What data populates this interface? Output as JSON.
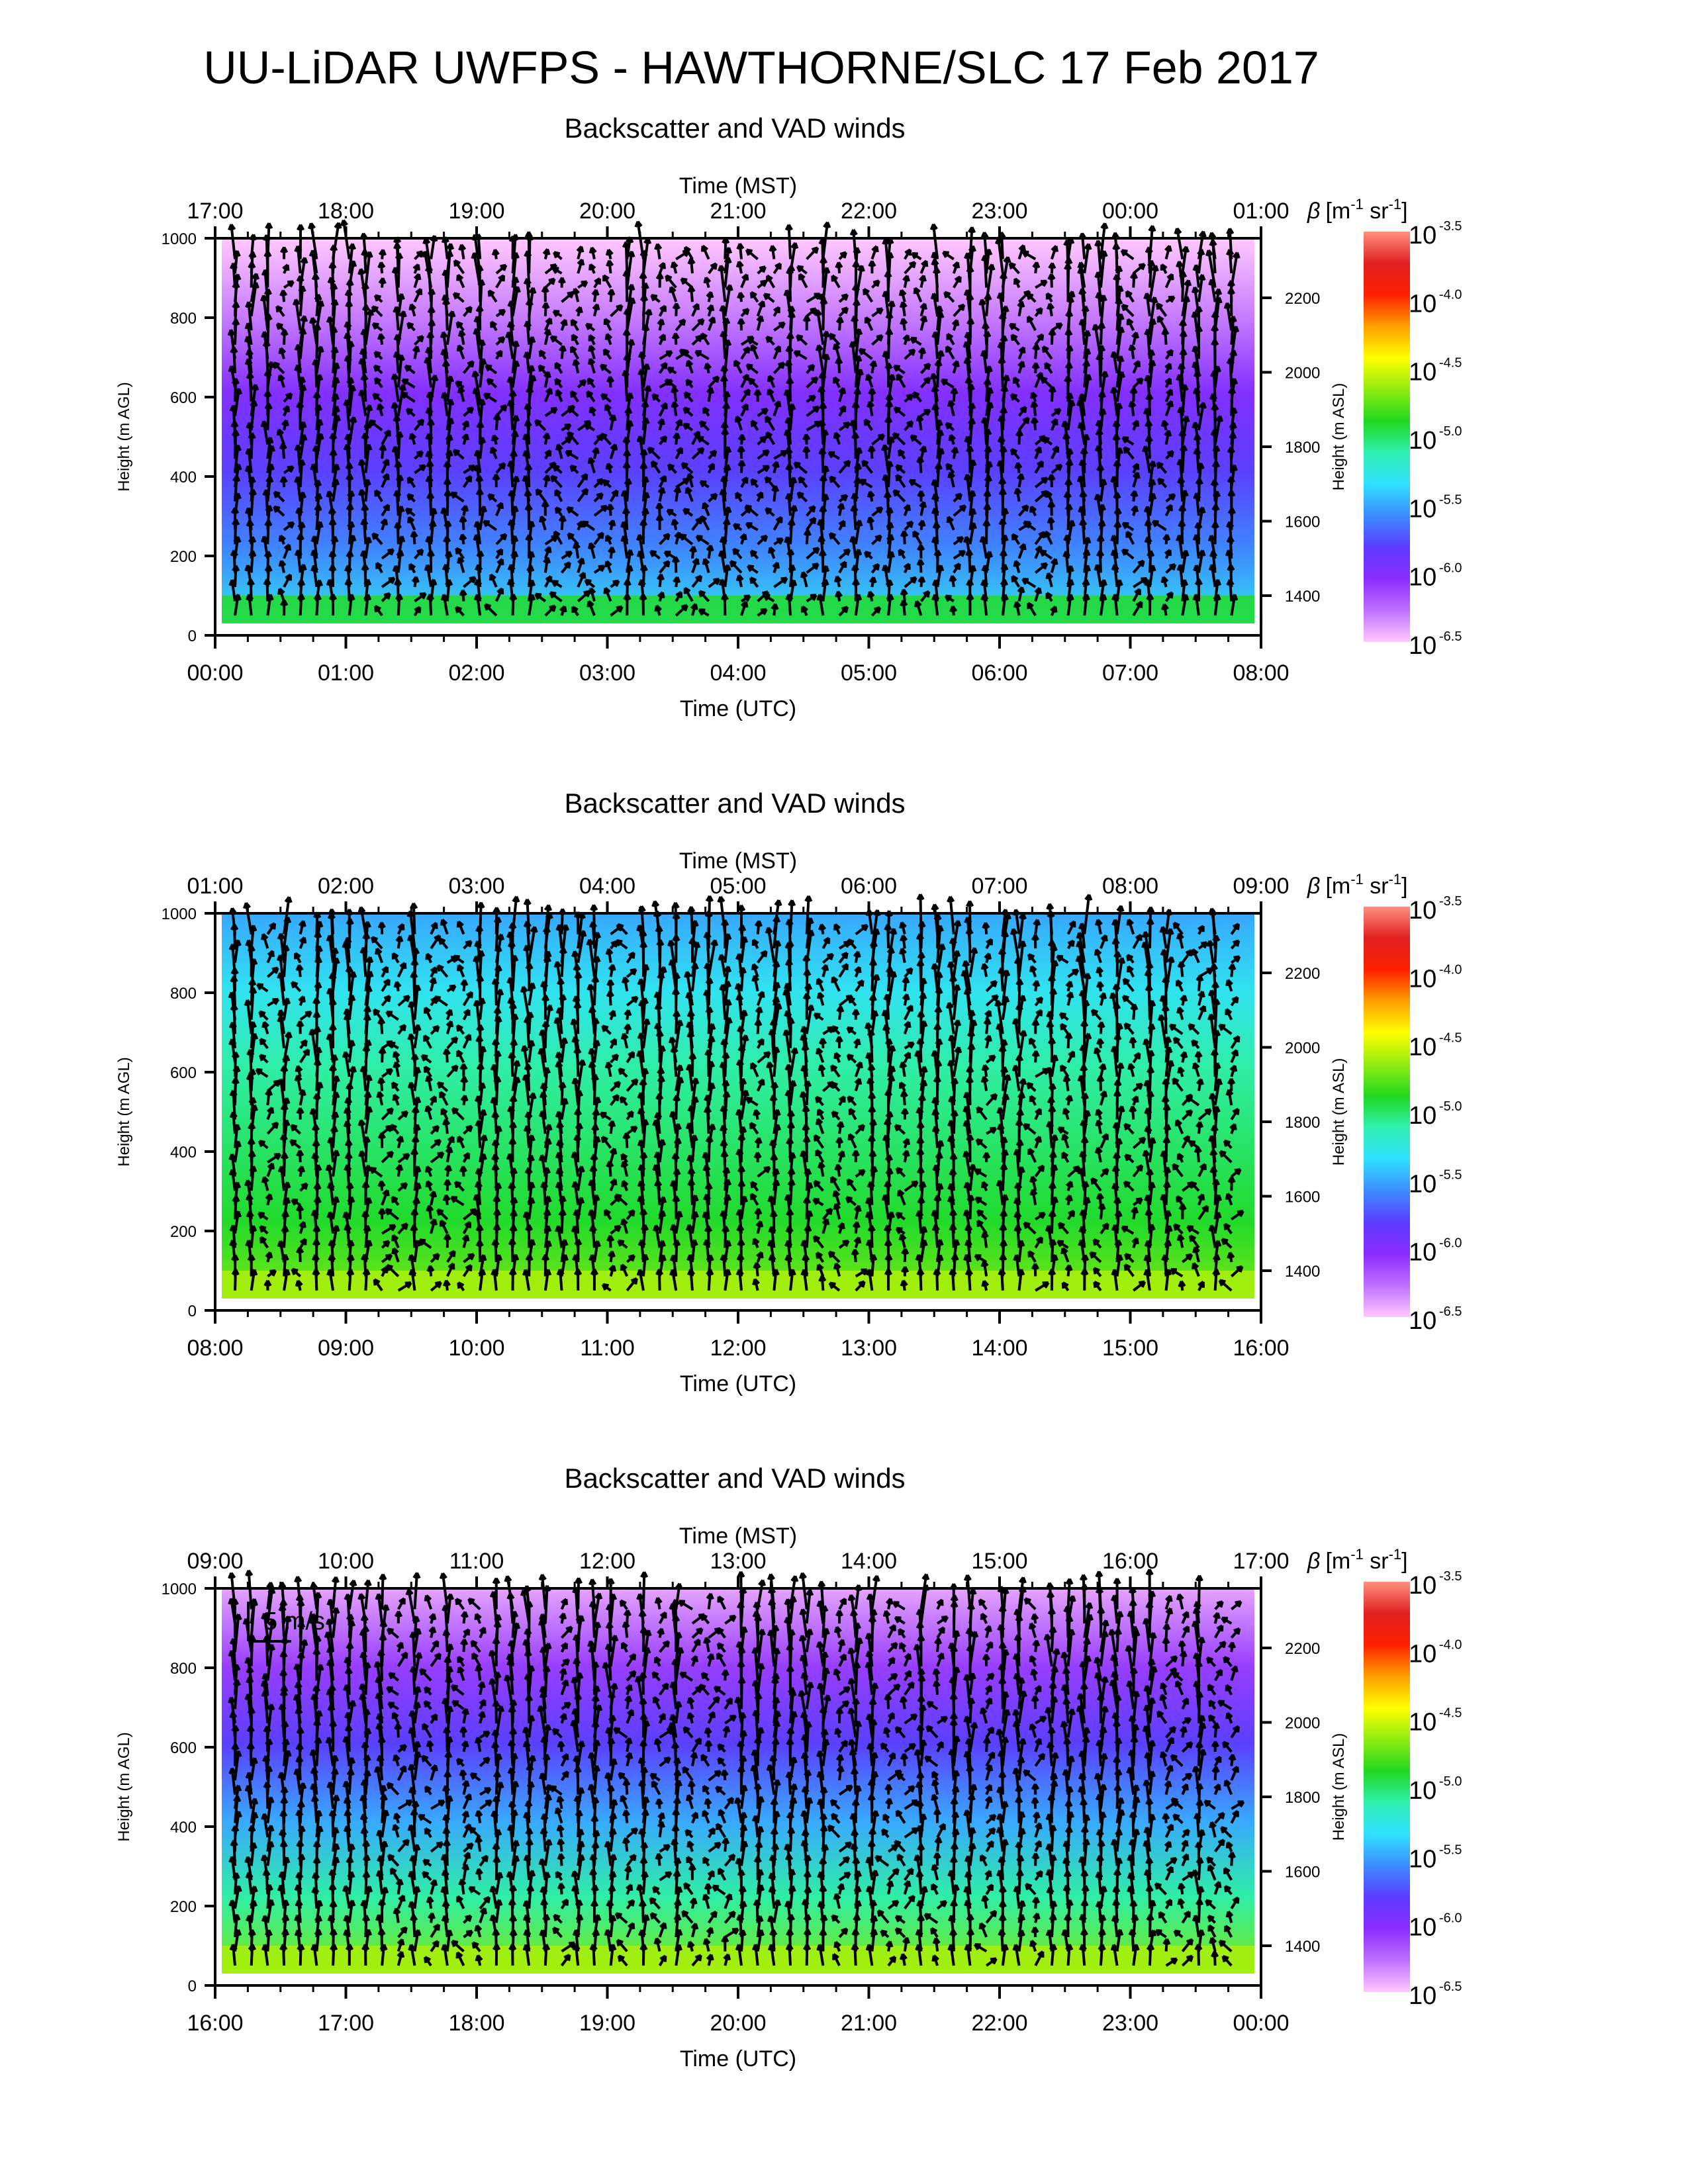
{
  "title": "UU-LiDAR UWFPS - HAWTHORNE/SLC 17 Feb 2017",
  "colors": {
    "ramp": [
      "#ffc8ff",
      "#c070ff",
      "#8a2cff",
      "#5c3cff",
      "#3c8cff",
      "#30e0ff",
      "#30f0b0",
      "#20d820",
      "#90ec10",
      "#ffff00",
      "#ffa000",
      "#ff2000",
      "#e02020",
      "#ff9080"
    ],
    "arrows": "#000000"
  },
  "chart_data": [
    {
      "type": "heatmap",
      "title": "Backscatter and VAD winds",
      "x_top_label": "Time (MST)",
      "x_top_ticks": [
        "17:00",
        "18:00",
        "19:00",
        "20:00",
        "21:00",
        "22:00",
        "23:00",
        "00:00",
        "01:00"
      ],
      "x_bottom_label": "Time (UTC)",
      "x_bottom_ticks": [
        "00:00",
        "01:00",
        "02:00",
        "03:00",
        "04:00",
        "05:00",
        "06:00",
        "07:00",
        "08:00"
      ],
      "x_range": [
        "00:00",
        "08:00"
      ],
      "ylabel_left": "Height (m AGL)",
      "y_left_ticks": [
        "0",
        "200",
        "400",
        "600",
        "800",
        "1000"
      ],
      "ylim_left": [
        0,
        1000
      ],
      "ylabel_right": "Height (m ASL)",
      "y_right_ticks": [
        "1400",
        "1600",
        "1800",
        "2000",
        "2200"
      ],
      "colorbar": {
        "label_symbol": "β",
        "label_units": "[m",
        "unit_exp1": "-1",
        "unit_mid": " sr",
        "unit_exp2": "-1",
        "unit_close": "]",
        "base": "10",
        "exponents": [
          "-3.5",
          "-4.0",
          "-4.5",
          "-5.0",
          "-5.5",
          "-6.0",
          "-6.5"
        ],
        "range_log10": [
          -6.5,
          -3.5
        ]
      },
      "scale_label": "",
      "backscatter_profile_log10": [
        -5.3,
        -5.6,
        -5.8,
        -6.0,
        -6.3,
        -6.5
      ],
      "surface_band_log10": -4.9
    },
    {
      "type": "heatmap",
      "title": "Backscatter and VAD winds",
      "x_top_label": "Time (MST)",
      "x_top_ticks": [
        "01:00",
        "02:00",
        "03:00",
        "04:00",
        "05:00",
        "06:00",
        "07:00",
        "08:00",
        "09:00"
      ],
      "x_bottom_label": "Time (UTC)",
      "x_bottom_ticks": [
        "08:00",
        "09:00",
        "10:00",
        "11:00",
        "12:00",
        "13:00",
        "14:00",
        "15:00",
        "16:00"
      ],
      "x_range": [
        "08:00",
        "16:00"
      ],
      "ylabel_left": "Height (m AGL)",
      "y_left_ticks": [
        "0",
        "200",
        "400",
        "600",
        "800",
        "1000"
      ],
      "ylim_left": [
        0,
        1000
      ],
      "ylabel_right": "Height (m ASL)",
      "y_right_ticks": [
        "1400",
        "1600",
        "1800",
        "2000",
        "2200"
      ],
      "colorbar": {
        "label_symbol": "β",
        "label_units": "[m",
        "unit_exp1": "-1",
        "unit_mid": " sr",
        "unit_exp2": "-1",
        "unit_close": "]",
        "base": "10",
        "exponents": [
          "-3.5",
          "-4.0",
          "-4.5",
          "-5.0",
          "-5.5",
          "-6.0",
          "-6.5"
        ],
        "range_log10": [
          -6.5,
          -3.5
        ]
      },
      "scale_label": "",
      "backscatter_profile_log10": [
        -4.7,
        -4.9,
        -5.0,
        -5.1,
        -5.3,
        -5.5
      ],
      "surface_band_log10": -4.6
    },
    {
      "type": "heatmap",
      "title": "Backscatter and VAD winds",
      "x_top_label": "Time (MST)",
      "x_top_ticks": [
        "09:00",
        "10:00",
        "11:00",
        "12:00",
        "13:00",
        "14:00",
        "15:00",
        "16:00",
        "17:00"
      ],
      "x_bottom_label": "Time (UTC)",
      "x_bottom_ticks": [
        "16:00",
        "17:00",
        "18:00",
        "19:00",
        "20:00",
        "21:00",
        "22:00",
        "23:00",
        "00:00"
      ],
      "x_range": [
        "16:00",
        "00:00"
      ],
      "ylabel_left": "Height (m AGL)",
      "y_left_ticks": [
        "0",
        "200",
        "400",
        "600",
        "800",
        "1000"
      ],
      "ylim_left": [
        0,
        1000
      ],
      "ylabel_right": "Height (m ASL)",
      "y_right_ticks": [
        "1400",
        "1600",
        "1800",
        "2000",
        "2200"
      ],
      "colorbar": {
        "label_symbol": "β",
        "label_units": "[m",
        "unit_exp1": "-1",
        "unit_mid": " sr",
        "unit_exp2": "-1",
        "unit_close": "]",
        "base": "10",
        "exponents": [
          "-3.5",
          "-4.0",
          "-4.5",
          "-5.0",
          "-5.5",
          "-6.0",
          "-6.5"
        ],
        "range_log10": [
          -6.5,
          -3.5
        ]
      },
      "scale_label": "5 m/s",
      "backscatter_profile_log10": [
        -4.7,
        -5.1,
        -5.5,
        -5.8,
        -6.1,
        -6.4
      ],
      "surface_band_log10": -4.6
    }
  ]
}
